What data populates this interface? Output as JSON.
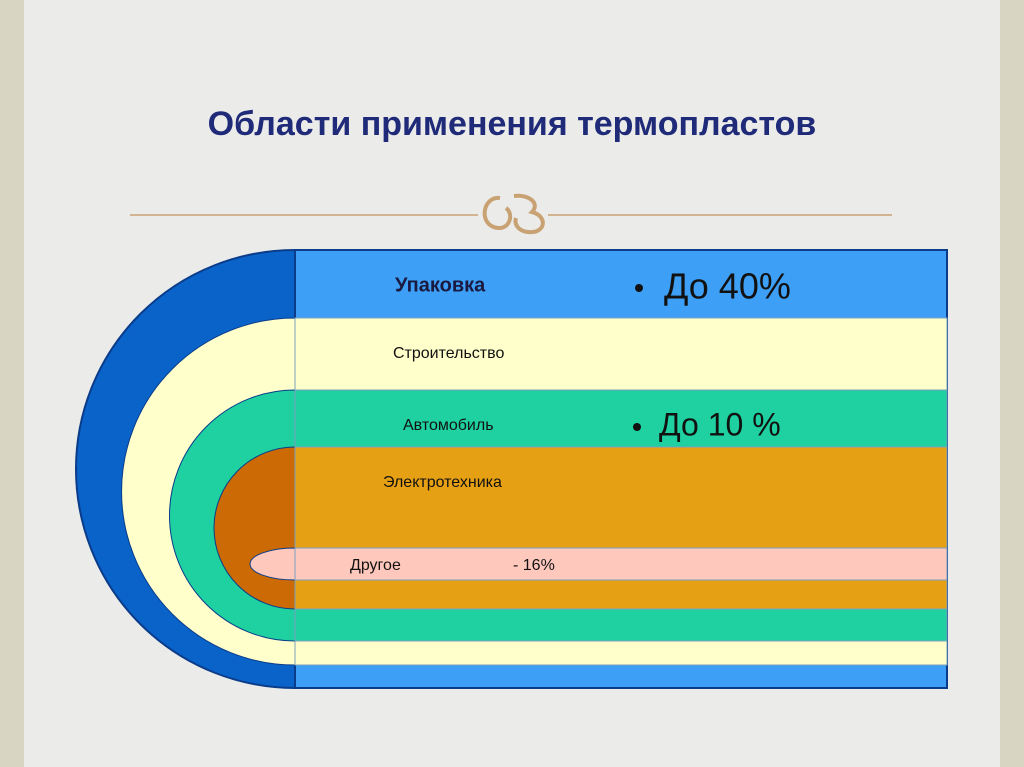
{
  "title": "Области применения термопластов",
  "layers": [
    {
      "label": "Упаковка",
      "note": "До 40%"
    },
    {
      "label": "Строительство"
    },
    {
      "label": "Автомобиль",
      "note": "До 10 %"
    },
    {
      "label": "Электротехника"
    },
    {
      "label": "Другое",
      "note": "- 16%"
    }
  ]
}
